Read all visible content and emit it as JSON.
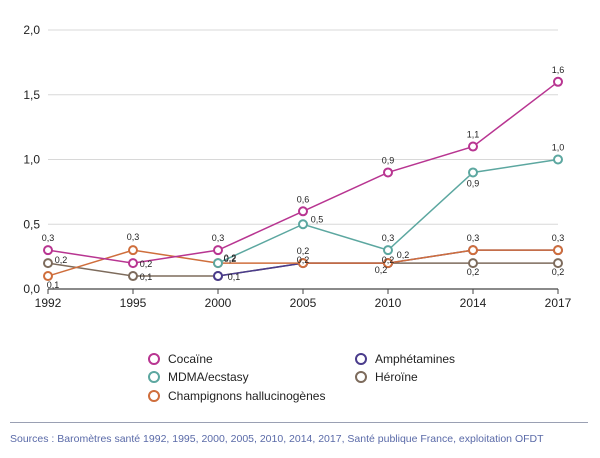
{
  "chart_data": {
    "type": "line",
    "x": [
      1992,
      1995,
      2000,
      2005,
      2010,
      2014,
      2017
    ],
    "x_tick_labels": [
      "1992",
      "1995",
      "2000",
      "2005",
      "2010",
      "2014",
      "2017"
    ],
    "ylim": [
      0,
      2.0
    ],
    "y_ticks": [
      0,
      0.5,
      1.0,
      1.5,
      2.0
    ],
    "y_tick_labels": [
      "0,0",
      "0,5",
      "1,0",
      "1,5",
      "2,0"
    ],
    "grid": "horizontal",
    "legend_position": "bottom",
    "series": [
      {
        "name": "Cocaïne",
        "color": "#b83591",
        "values": [
          0.3,
          0.2,
          0.3,
          0.6,
          0.9,
          1.1,
          1.6
        ],
        "labels": [
          "0,3",
          "0,2",
          "0,3",
          "0,6",
          "0,9",
          "1,1",
          "1,6"
        ]
      },
      {
        "name": "MDMA/ecstasy",
        "color": "#5ca7a0",
        "values": [
          null,
          null,
          0.2,
          0.5,
          0.3,
          0.9,
          1.0
        ],
        "labels": [
          "",
          "",
          "0,2",
          "0,5",
          "0,3",
          "0,9",
          "1,0"
        ]
      },
      {
        "name": "Champignons hallucinogènes",
        "color": "#cf6e3c",
        "values": [
          0.1,
          0.3,
          0.2,
          0.2,
          0.2,
          0.3,
          0.3
        ],
        "labels": [
          "0,1",
          "0,3",
          "0,2",
          "0,2",
          "0,2",
          "0,3",
          "0,3"
        ]
      },
      {
        "name": "Amphétamines",
        "color": "#4a3c8c",
        "values": [
          null,
          null,
          0.1,
          0.2,
          0.2,
          0.3,
          0.3
        ],
        "labels": [
          "",
          "",
          "0,1",
          "",
          "0,2",
          "",
          ""
        ]
      },
      {
        "name": "Héroïne",
        "color": "#7d6b5c",
        "values": [
          0.2,
          0.1,
          0.1,
          0.2,
          0.2,
          0.2,
          0.2
        ],
        "labels": [
          "0,2",
          "0,1",
          "",
          "0,2",
          "0,2",
          "0,2",
          "0,2"
        ]
      }
    ]
  },
  "footer": {
    "source": "Sources : Baromètres santé 1992, 1995, 2000, 2005, 2010, 2014, 2017, Santé publique France, exploitation OFDT"
  }
}
